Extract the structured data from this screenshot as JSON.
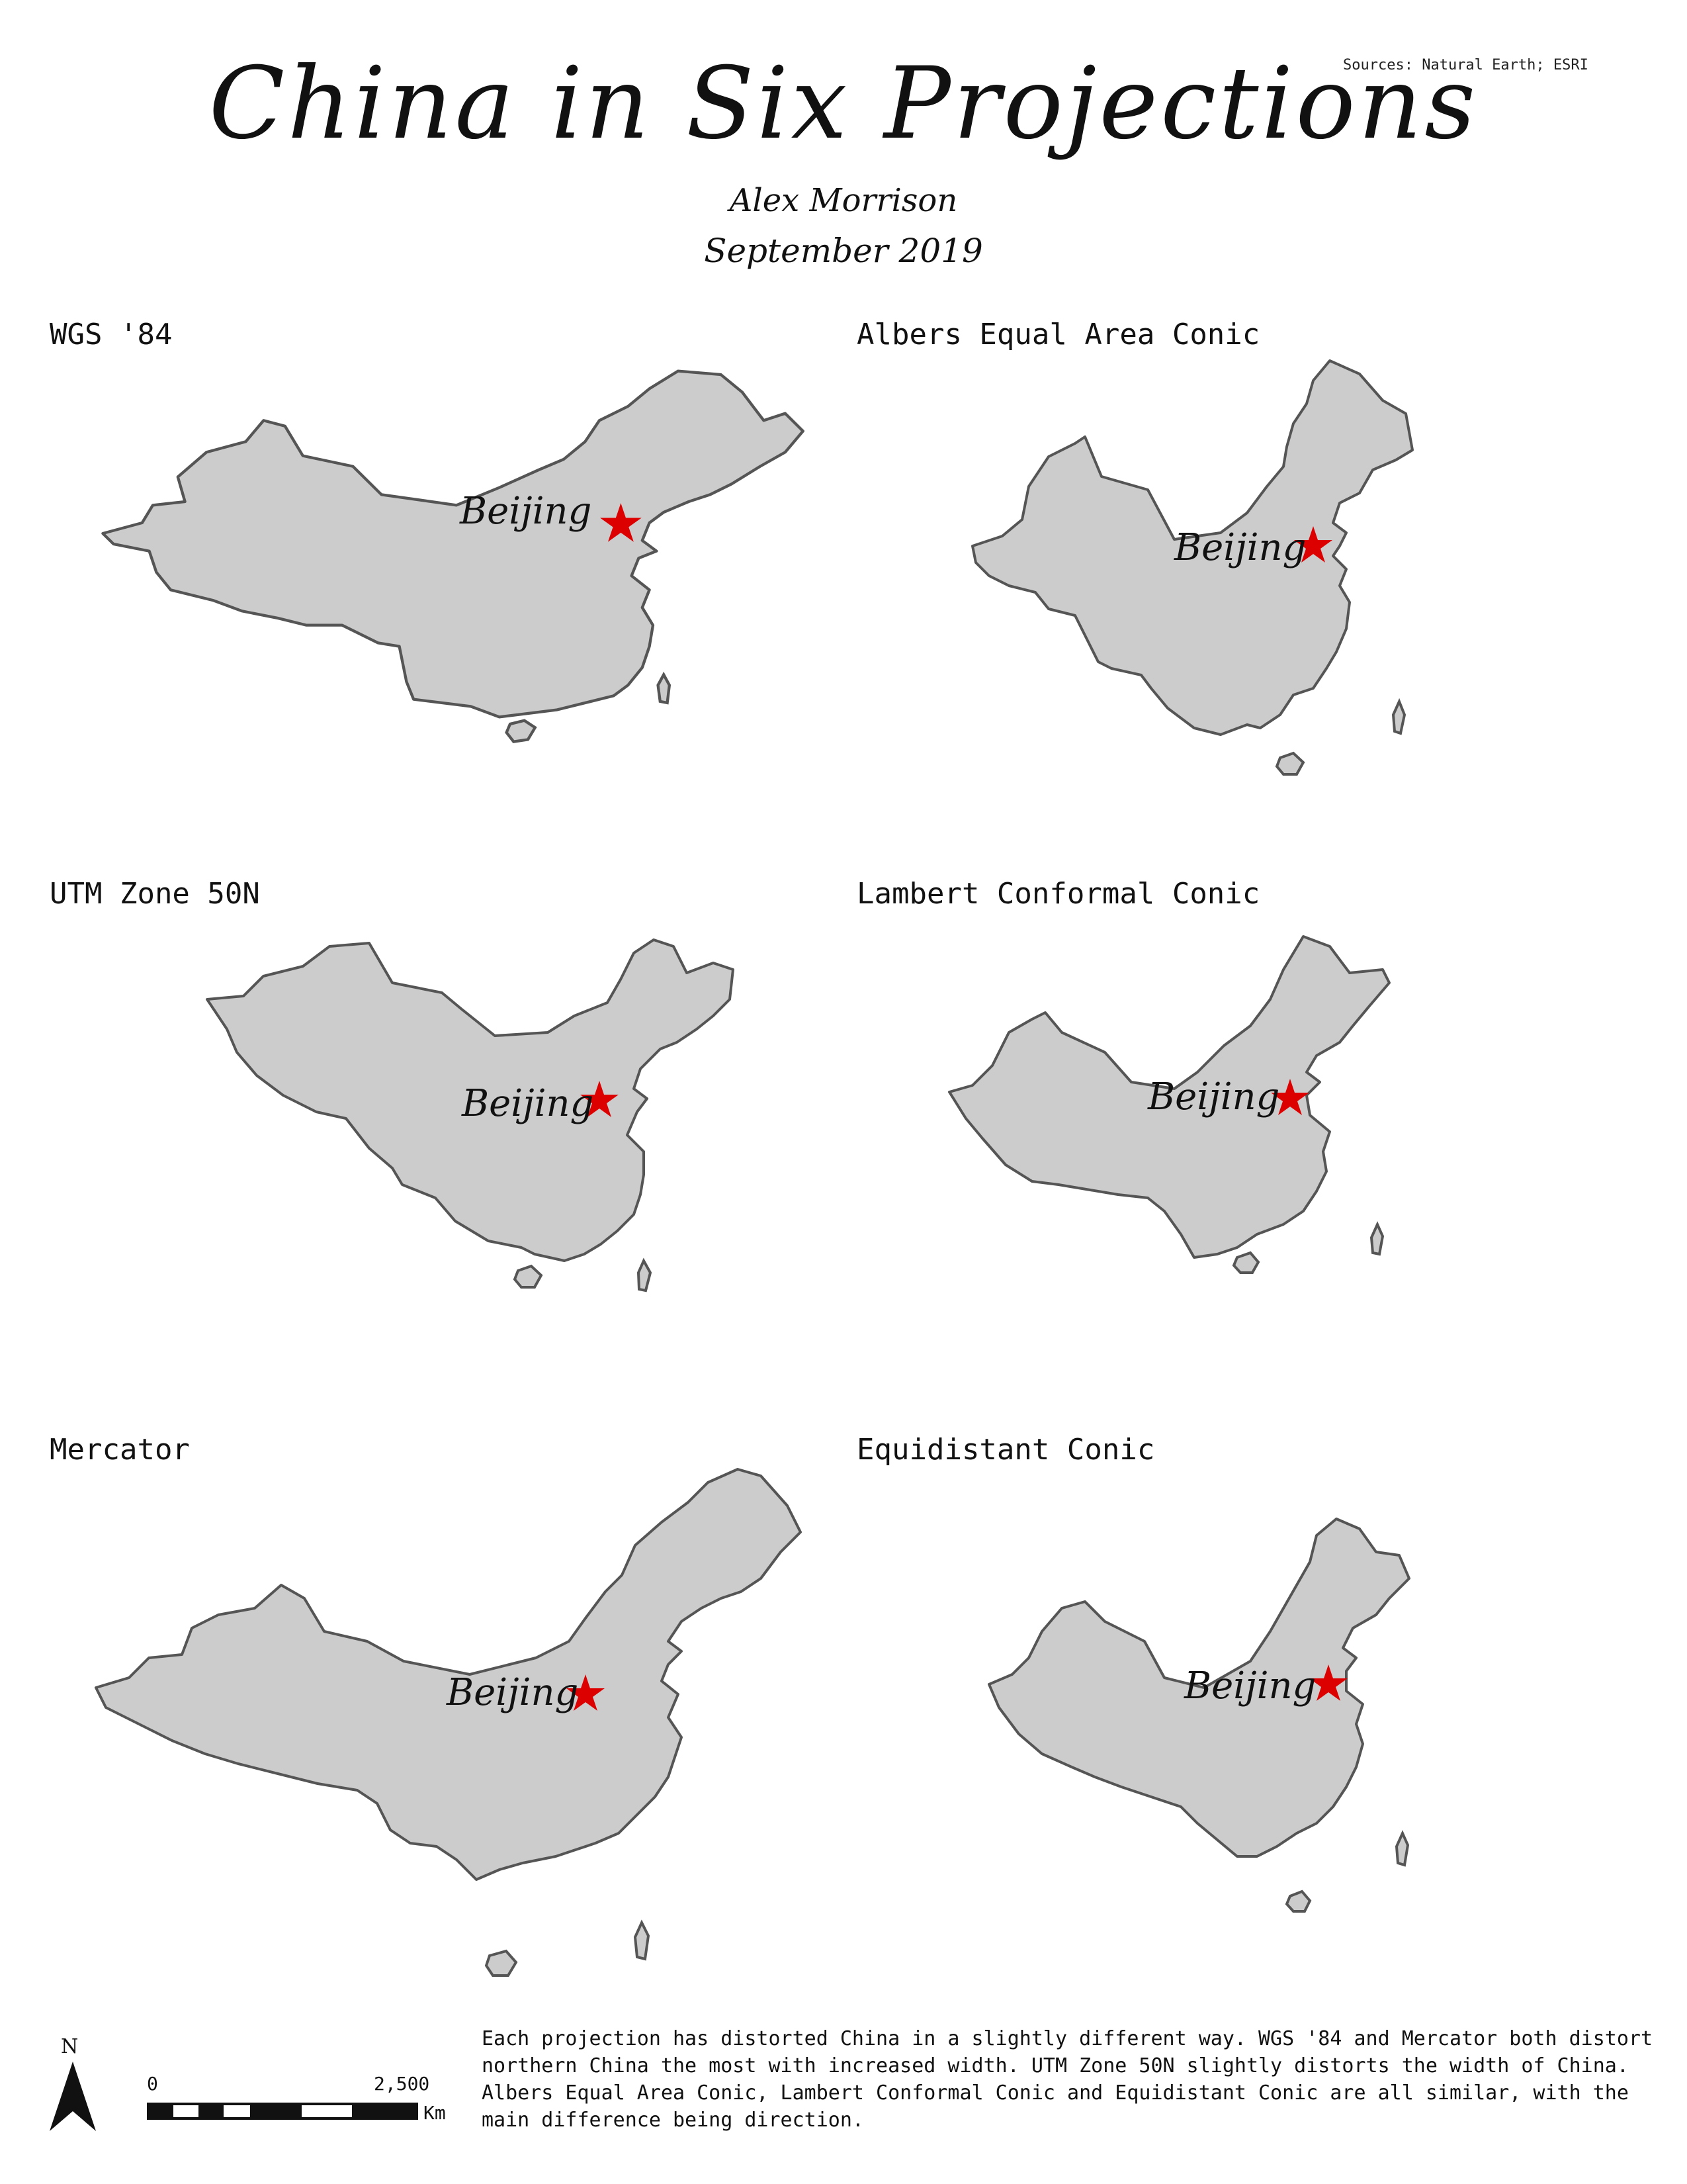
{
  "header": {
    "title": "China in Six Projections",
    "author": "Alex Morrison",
    "date": "September 2019",
    "sources": "Sources: Natural Earth; ESRI"
  },
  "panels": [
    {
      "label": "WGS '84",
      "city": "Beijing"
    },
    {
      "label": "Albers Equal Area Conic",
      "city": "Beijing"
    },
    {
      "label": "UTM Zone 50N",
      "city": "Beijing"
    },
    {
      "label": "Lambert Conformal Conic",
      "city": "Beijing"
    },
    {
      "label": "Mercator",
      "city": "Beijing"
    },
    {
      "label": "Equidistant Conic",
      "city": "Beijing"
    }
  ],
  "legend": {
    "north_label": "N",
    "scale_start": "0",
    "scale_end": "2,500",
    "scale_unit": "Km"
  },
  "description": "Each projection has distorted China in a slightly different way. WGS '84 and Mercator both distort northern China the most with increased width. UTM Zone 50N slightly distorts the width of China. Albers Equal Area Conic, Lambert Conformal Conic and Equidistant Conic are all similar, with the main difference being direction.",
  "colors": {
    "land": "#cccccc",
    "outline": "#555555",
    "capital_marker": "#dd0000"
  }
}
